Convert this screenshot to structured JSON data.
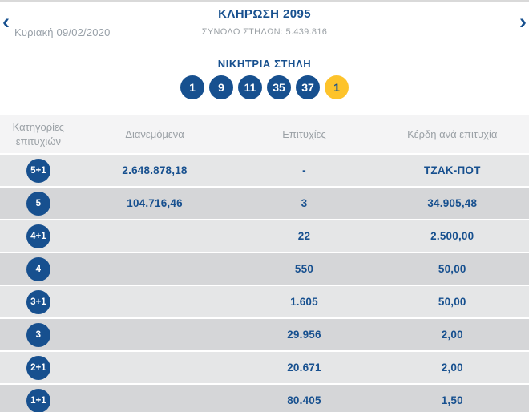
{
  "nav": {
    "prev_icon": "‹",
    "next_icon": "›",
    "date": "Κυριακή 09/02/2020",
    "title": "ΚΛΗΡΩΣΗ 2095",
    "total_columns_label": "ΣΥΝΟΛΟ ΣΤΗΛΩΝ: 5.439.816"
  },
  "winning": {
    "title": "ΝΙΚΗΤΡΙΑ ΣΤΗΛΗ",
    "numbers": [
      "1",
      "9",
      "11",
      "35",
      "37"
    ],
    "bonus": "1"
  },
  "table": {
    "headers": {
      "category": "Κατηγορίες επιτυχιών",
      "distributed": "Διανεμόμενα",
      "hits": "Επιτυχίες",
      "prize": "Κέρδη ανά επιτυχία"
    },
    "rows": [
      {
        "category": "5+1",
        "distributed": "2.648.878,18",
        "hits": "-",
        "prize": "ΤΖΑΚ-ΠΟΤ"
      },
      {
        "category": "5",
        "distributed": "104.716,46",
        "hits": "3",
        "prize": "34.905,48"
      },
      {
        "category": "4+1",
        "distributed": "",
        "hits": "22",
        "prize": "2.500,00"
      },
      {
        "category": "4",
        "distributed": "",
        "hits": "550",
        "prize": "50,00"
      },
      {
        "category": "3+1",
        "distributed": "",
        "hits": "1.605",
        "prize": "50,00"
      },
      {
        "category": "3",
        "distributed": "",
        "hits": "29.956",
        "prize": "2,00"
      },
      {
        "category": "2+1",
        "distributed": "",
        "hits": "20.671",
        "prize": "2,00"
      },
      {
        "category": "1+1",
        "distributed": "",
        "hits": "80.405",
        "prize": "1,50"
      }
    ]
  },
  "colors": {
    "accent_blue": "#17508f",
    "bonus_yellow": "#fdc32b",
    "row_light": "#e5e6e7",
    "row_dark": "#d5d6d8",
    "header_bg": "#f4f4f5",
    "muted_text": "#9ba1a6"
  }
}
